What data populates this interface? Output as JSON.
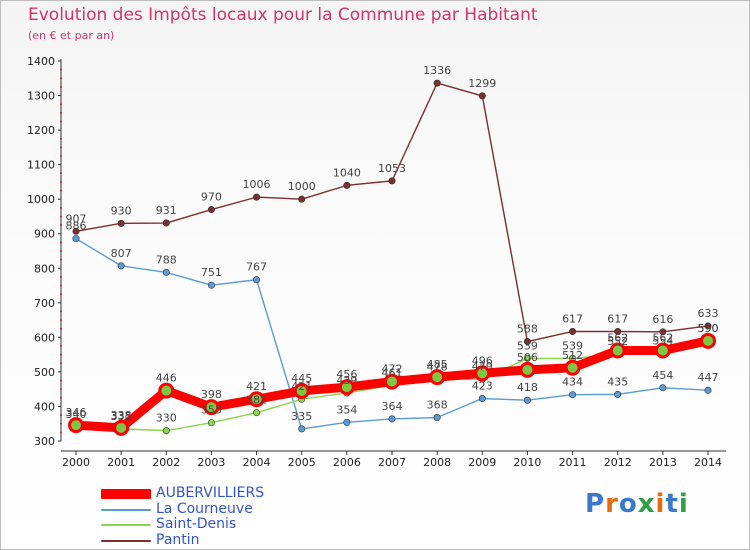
{
  "header": {
    "title": "Evolution des Impôts locaux pour la Commune par Habitant",
    "subtitle": "(en € et par an)"
  },
  "branding": {
    "letters": [
      "P",
      "r",
      "o",
      "x",
      "i",
      "t",
      "i"
    ],
    "colors": [
      "#3a78c9",
      "#e86a10",
      "#3a78c9",
      "#2f9e44",
      "#e86a10",
      "#3a78c9",
      "#2f9e44"
    ]
  },
  "chart_data": {
    "type": "line",
    "x": [
      "2000",
      "2001",
      "2002",
      "2003",
      "2004",
      "2005",
      "2006",
      "2007",
      "2008",
      "2009",
      "2010",
      "2011",
      "2012",
      "2013",
      "2014"
    ],
    "ylim": [
      300,
      1400
    ],
    "yticks": [
      "300",
      "400",
      "500",
      "600",
      "700",
      "800",
      "900",
      "1000",
      "1100",
      "1200",
      "1300",
      "1400"
    ],
    "grid": false,
    "legend_position": "bottom-left",
    "series": [
      {
        "name": "AUBERVILLIERS",
        "color": "#ff0000",
        "values": [
          346,
          338,
          446,
          398,
          421,
          445,
          456,
          472,
          485,
          496,
          506,
          512,
          562,
          562,
          590
        ],
        "labels": [
          "346",
          "338",
          "446",
          "398",
          "421",
          "445",
          "456",
          "472",
          "485",
          "496",
          "506",
          "512",
          "562",
          "562",
          "590"
        ]
      },
      {
        "name": "La Courneuve",
        "color": "#5b9bd5",
        "values": [
          886,
          807,
          788,
          751,
          767,
          335,
          354,
          364,
          368,
          423,
          418,
          434,
          435,
          454,
          447
        ],
        "labels": [
          "886",
          "807",
          "788",
          "751",
          "767",
          "335",
          "354",
          "364",
          "368",
          "423",
          "418",
          "434",
          "435",
          "454",
          "447"
        ]
      },
      {
        "name": "Saint-Denis",
        "color": "#8bd650",
        "values": [
          340,
          335,
          330,
          353,
          382,
          421,
          439,
          461,
          478,
          479,
          539,
          539,
          552,
          554,
          590
        ],
        "labels": [
          "340",
          "335",
          "330",
          "353",
          "382",
          "421",
          "439",
          "461",
          "478",
          "479",
          "539",
          "539",
          "552",
          "554",
          "590"
        ]
      },
      {
        "name": "Pantin",
        "color": "#7b2f2f",
        "values": [
          907,
          930,
          931,
          970,
          1006,
          1000,
          1040,
          1053,
          1336,
          1299,
          588,
          617,
          617,
          616,
          633
        ],
        "labels": [
          "907",
          "930",
          "931",
          "970",
          "1006",
          "1000",
          "1040",
          "1053",
          "1336",
          "1299",
          "588",
          "617",
          "617",
          "616",
          "633"
        ]
      }
    ]
  }
}
